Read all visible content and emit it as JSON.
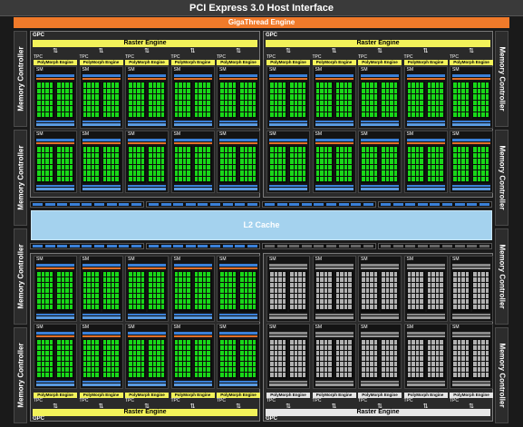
{
  "header": {
    "pci_label": "PCI Express 3.0 Host Interface",
    "giga_label": "GigaThread Engine"
  },
  "memory_controller_label": "Memory Controller",
  "l2_label": "L2 Cache",
  "gpc_label": "GPC",
  "raster_label": "Raster Engine",
  "tpc_label": "TPC",
  "sm_label": "SM",
  "polymorph_label": "PolyMorph Engine",
  "arrow_glyph": "⇅",
  "colors": {
    "active_core": "#18d818",
    "disabled_core": "#b0b0b0",
    "raster": "#f2f25a",
    "giga": "#f07a2a",
    "l2": "#a4d2ee",
    "bus": "#3a80d8"
  },
  "gpcs": [
    {
      "position": "top-left",
      "active": true
    },
    {
      "position": "top-right",
      "active": true
    },
    {
      "position": "bottom-left",
      "active": true
    },
    {
      "position": "bottom-right",
      "active": false
    }
  ]
}
